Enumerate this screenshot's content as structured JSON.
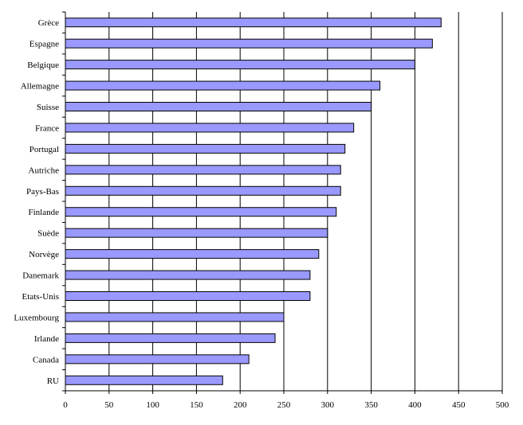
{
  "chart_data": {
    "type": "bar",
    "orientation": "horizontal",
    "title": "",
    "xlabel": "",
    "ylabel": "",
    "categories": [
      "Grèce",
      "Espagne",
      "Belgique",
      "Allemagne",
      "Suisse",
      "France",
      "Portugal",
      "Autriche",
      "Pays-Bas",
      "Finlande",
      "Suède",
      "Norvège",
      "Danemark",
      "Etats-Unis",
      "Luxembourg",
      "Irlande",
      "Canada",
      "RU"
    ],
    "values": [
      430,
      420,
      400,
      360,
      350,
      330,
      320,
      315,
      315,
      310,
      300,
      290,
      280,
      280,
      250,
      240,
      210,
      180
    ],
    "xlim": [
      0,
      500
    ],
    "xticks": [
      "0",
      "50",
      "100",
      "150",
      "200",
      "250",
      "300",
      "350",
      "400",
      "450",
      "500"
    ],
    "grid": "vertical",
    "legend": "none",
    "bar_color": "#9999ff",
    "bar_edge_color": "#000000"
  }
}
